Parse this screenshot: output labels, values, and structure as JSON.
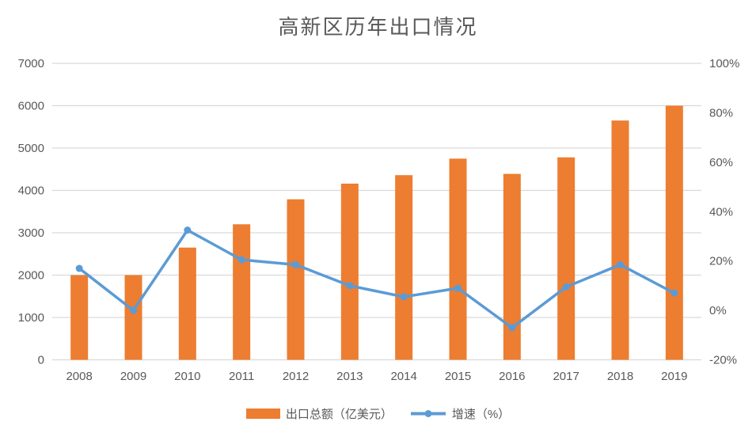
{
  "title": "高新区历年出口情况",
  "colors": {
    "bar": "#ED7D31",
    "line": "#5B9BD5",
    "grid": "#D9D9D9",
    "text": "#595959"
  },
  "legend": {
    "bar_label": "出口总额（亿美元）",
    "line_label": "增速（%）"
  },
  "chart_data": {
    "type": "bar",
    "subtype": "combo-bar-line",
    "title": "高新区历年出口情况",
    "categories": [
      "2008",
      "2009",
      "2010",
      "2011",
      "2012",
      "2013",
      "2014",
      "2015",
      "2016",
      "2017",
      "2018",
      "2019"
    ],
    "series": [
      {
        "name": "出口总额（亿美元）",
        "type": "bar",
        "axis": "left",
        "color": "#ED7D31",
        "values": [
          2000,
          2000,
          2650,
          3200,
          3790,
          4160,
          4360,
          4750,
          4390,
          4780,
          5650,
          6000
        ]
      },
      {
        "name": "增速（%）",
        "type": "line",
        "axis": "right",
        "color": "#5B9BD5",
        "values": [
          17,
          0,
          32.5,
          20.5,
          18.5,
          10,
          5.5,
          9,
          -7,
          9.5,
          18.5,
          7
        ]
      }
    ],
    "left_axis": {
      "min": 0,
      "max": 7000,
      "step": 1000,
      "tick_labels": [
        "0",
        "1000",
        "2000",
        "3000",
        "4000",
        "5000",
        "6000",
        "7000"
      ]
    },
    "right_axis": {
      "min": -20,
      "max": 100,
      "step": 20,
      "tick_labels": [
        "-20%",
        "0%",
        "20%",
        "40%",
        "60%",
        "80%",
        "100%"
      ]
    },
    "grid": true,
    "legend_position": "bottom"
  }
}
